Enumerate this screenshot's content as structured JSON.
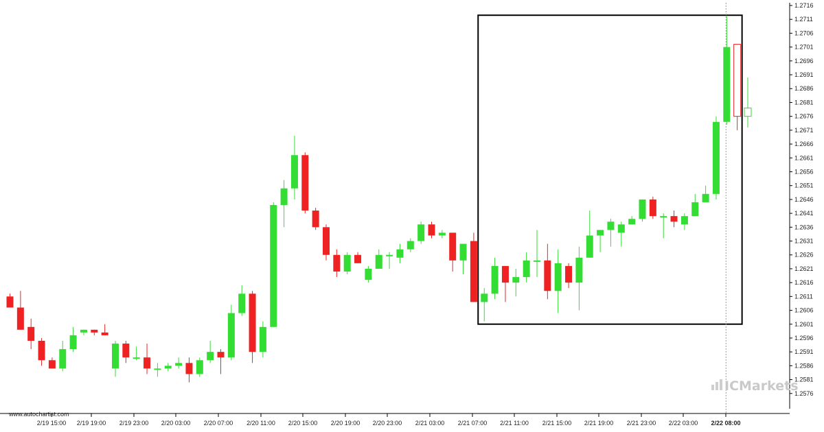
{
  "watermark": {
    "brand": "ICMarkets"
  },
  "source_label": "www.autochartist.com",
  "colors": {
    "up": "#33dd33",
    "down": "#ee2222",
    "wick": "#555555",
    "box": "#000000"
  },
  "chart_data": {
    "type": "candlestick",
    "title": "",
    "xlabel": "",
    "ylabel": "",
    "ylim": [
      1.2571,
      1.2716
    ],
    "y_ticks": [
      "1.2716",
      "1.2711",
      "1.2706",
      "1.2701",
      "1.2696",
      "1.2691",
      "1.2686",
      "1.2681",
      "1.2676",
      "1.2671",
      "1.2666",
      "1.2661",
      "1.2656",
      "1.2651",
      "1.2646",
      "1.2641",
      "1.2636",
      "1.2631",
      "1.2626",
      "1.2621",
      "1.2616",
      "1.2611",
      "1.2606",
      "1.2601",
      "1.2596",
      "1.2591",
      "1.2586",
      "1.2581",
      "1.2576"
    ],
    "x_ticks": [
      "2/19 15:00",
      "2/19 19:00",
      "2/19 23:00",
      "2/20 03:00",
      "2/20 07:00",
      "2/20 11:00",
      "2/20 15:00",
      "2/20 19:00",
      "2/20 23:00",
      "2/21 03:00",
      "2/21 07:00",
      "2/21 11:00",
      "2/21 15:00",
      "2/21 19:00",
      "2/21 23:00",
      "2/22 03:00",
      "2/22 08:00"
    ],
    "grid": false,
    "candles": [
      {
        "o": 1.2611,
        "h": 1.2612,
        "l": 1.2607,
        "c": 1.2607
      },
      {
        "o": 1.2607,
        "h": 1.2613,
        "l": 1.2599,
        "c": 1.2599
      },
      {
        "o": 1.26,
        "h": 1.2603,
        "l": 1.2592,
        "c": 1.2595
      },
      {
        "o": 1.2595,
        "h": 1.2596,
        "l": 1.2586,
        "c": 1.2588
      },
      {
        "o": 1.2588,
        "h": 1.2589,
        "l": 1.2585,
        "c": 1.2585
      },
      {
        "o": 1.2585,
        "h": 1.2595,
        "l": 1.2584,
        "c": 1.2592
      },
      {
        "o": 1.2592,
        "h": 1.26,
        "l": 1.2591,
        "c": 1.2597
      },
      {
        "o": 1.2598,
        "h": 1.2599,
        "l": 1.2597,
        "c": 1.2599
      },
      {
        "o": 1.2599,
        "h": 1.2599,
        "l": 1.2597,
        "c": 1.2598
      },
      {
        "o": 1.2598,
        "h": 1.2601,
        "l": 1.2597,
        "c": 1.2597
      },
      {
        "o": 1.2585,
        "h": 1.2595,
        "l": 1.2582,
        "c": 1.2594
      },
      {
        "o": 1.2594,
        "h": 1.2595,
        "l": 1.2587,
        "c": 1.2589
      },
      {
        "o": 1.2589,
        "h": 1.2593,
        "l": 1.2588,
        "c": 1.2589
      },
      {
        "o": 1.2589,
        "h": 1.2594,
        "l": 1.2583,
        "c": 1.2585
      },
      {
        "o": 1.2585,
        "h": 1.2587,
        "l": 1.2582,
        "c": 1.2585
      },
      {
        "o": 1.2585,
        "h": 1.2587,
        "l": 1.2584,
        "c": 1.2586
      },
      {
        "o": 1.2586,
        "h": 1.2589,
        "l": 1.2585,
        "c": 1.2587
      },
      {
        "o": 1.2587,
        "h": 1.2589,
        "l": 1.258,
        "c": 1.2583
      },
      {
        "o": 1.2583,
        "h": 1.2589,
        "l": 1.2582,
        "c": 1.2588
      },
      {
        "o": 1.2588,
        "h": 1.2595,
        "l": 1.2587,
        "c": 1.2591
      },
      {
        "o": 1.2591,
        "h": 1.2592,
        "l": 1.2583,
        "c": 1.2589
      },
      {
        "o": 1.2589,
        "h": 1.2608,
        "l": 1.2588,
        "c": 1.2605
      },
      {
        "o": 1.2605,
        "h": 1.2615,
        "l": 1.2604,
        "c": 1.2612
      },
      {
        "o": 1.2612,
        "h": 1.2613,
        "l": 1.2587,
        "c": 1.2591
      },
      {
        "o": 1.2591,
        "h": 1.2602,
        "l": 1.2589,
        "c": 1.26
      },
      {
        "o": 1.26,
        "h": 1.2645,
        "l": 1.26,
        "c": 1.2644
      },
      {
        "o": 1.2644,
        "h": 1.2653,
        "l": 1.2636,
        "c": 1.265
      },
      {
        "o": 1.265,
        "h": 1.2669,
        "l": 1.2646,
        "c": 1.2662
      },
      {
        "o": 1.2662,
        "h": 1.2663,
        "l": 1.2641,
        "c": 1.2642
      },
      {
        "o": 1.2642,
        "h": 1.2643,
        "l": 1.2635,
        "c": 1.2636
      },
      {
        "o": 1.2636,
        "h": 1.2637,
        "l": 1.2624,
        "c": 1.2626
      },
      {
        "o": 1.2626,
        "h": 1.2628,
        "l": 1.2618,
        "c": 1.262
      },
      {
        "o": 1.262,
        "h": 1.2627,
        "l": 1.2619,
        "c": 1.2626
      },
      {
        "o": 1.2626,
        "h": 1.2627,
        "l": 1.2623,
        "c": 1.2623
      },
      {
        "o": 1.2617,
        "h": 1.2622,
        "l": 1.2616,
        "c": 1.2621
      },
      {
        "o": 1.2621,
        "h": 1.2628,
        "l": 1.2621,
        "c": 1.2626
      },
      {
        "o": 1.2626,
        "h": 1.2627,
        "l": 1.2621,
        "c": 1.2626
      },
      {
        "o": 1.2625,
        "h": 1.263,
        "l": 1.2623,
        "c": 1.2628
      },
      {
        "o": 1.2628,
        "h": 1.2632,
        "l": 1.2627,
        "c": 1.2631
      },
      {
        "o": 1.2631,
        "h": 1.2638,
        "l": 1.263,
        "c": 1.2637
      },
      {
        "o": 1.2637,
        "h": 1.2638,
        "l": 1.2632,
        "c": 1.2633
      },
      {
        "o": 1.2633,
        "h": 1.2635,
        "l": 1.2632,
        "c": 1.2634
      },
      {
        "o": 1.2634,
        "h": 1.2634,
        "l": 1.262,
        "c": 1.2624
      },
      {
        "o": 1.2624,
        "h": 1.2629,
        "l": 1.2619,
        "c": 1.263
      },
      {
        "o": 1.2631,
        "h": 1.2634,
        "l": 1.2609,
        "c": 1.2609
      },
      {
        "o": 1.2609,
        "h": 1.2614,
        "l": 1.2602,
        "c": 1.2612
      },
      {
        "o": 1.2612,
        "h": 1.2625,
        "l": 1.261,
        "c": 1.2622
      },
      {
        "o": 1.2622,
        "h": 1.2622,
        "l": 1.2609,
        "c": 1.2616
      },
      {
        "o": 1.2616,
        "h": 1.2621,
        "l": 1.2611,
        "c": 1.2618
      },
      {
        "o": 1.2618,
        "h": 1.2627,
        "l": 1.2616,
        "c": 1.2624
      },
      {
        "o": 1.2624,
        "h": 1.2635,
        "l": 1.2618,
        "c": 1.2624
      },
      {
        "o": 1.2624,
        "h": 1.263,
        "l": 1.261,
        "c": 1.2613
      },
      {
        "o": 1.2613,
        "h": 1.2628,
        "l": 1.2605,
        "c": 1.2623
      },
      {
        "o": 1.2622,
        "h": 1.2623,
        "l": 1.2614,
        "c": 1.2616
      },
      {
        "o": 1.2616,
        "h": 1.2629,
        "l": 1.2606,
        "c": 1.2625
      },
      {
        "o": 1.2625,
        "h": 1.2642,
        "l": 1.2625,
        "c": 1.2633
      },
      {
        "o": 1.2633,
        "h": 1.2635,
        "l": 1.2627,
        "c": 1.2635
      },
      {
        "o": 1.2635,
        "h": 1.2639,
        "l": 1.2629,
        "c": 1.2638
      },
      {
        "o": 1.2634,
        "h": 1.2638,
        "l": 1.2629,
        "c": 1.2637
      },
      {
        "o": 1.2637,
        "h": 1.264,
        "l": 1.2637,
        "c": 1.2639
      },
      {
        "o": 1.2639,
        "h": 1.2646,
        "l": 1.2638,
        "c": 1.2646
      },
      {
        "o": 1.2646,
        "h": 1.2647,
        "l": 1.2639,
        "c": 1.264
      },
      {
        "o": 1.264,
        "h": 1.2641,
        "l": 1.2632,
        "c": 1.264
      },
      {
        "o": 1.264,
        "h": 1.2642,
        "l": 1.2636,
        "c": 1.2638
      },
      {
        "o": 1.2637,
        "h": 1.2641,
        "l": 1.2635,
        "c": 1.264
      },
      {
        "o": 1.264,
        "h": 1.2648,
        "l": 1.264,
        "c": 1.2645
      },
      {
        "o": 1.2645,
        "h": 1.2651,
        "l": 1.2645,
        "c": 1.2648
      },
      {
        "o": 1.2648,
        "h": 1.2676,
        "l": 1.2646,
        "c": 1.2674
      },
      {
        "o": 1.2674,
        "h": 1.2712,
        "l": 1.2673,
        "c": 1.2701
      },
      {
        "o": 1.2702,
        "h": 1.2702,
        "l": 1.2671,
        "c": 1.2676
      },
      {
        "o": 1.2676,
        "h": 1.269,
        "l": 1.2672,
        "c": 1.2679
      }
    ],
    "box": {
      "from_index": 45,
      "to_index": 69,
      "top": 1.2711,
      "bottom": 1.2602
    }
  }
}
